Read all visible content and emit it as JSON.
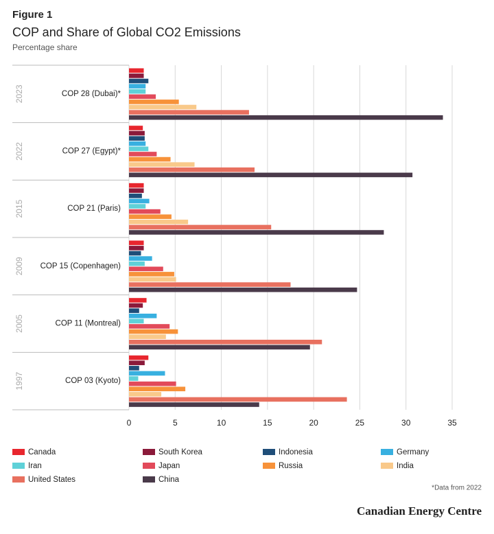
{
  "chart_data": {
    "type": "bar",
    "orientation": "horizontal",
    "figure_label": "Figure 1",
    "title": "COP and Share of Global CO2 Emissions",
    "subtitle": "Percentage share",
    "categories": [
      "COP 28 (Dubai)*",
      "COP 27 (Egypt)*",
      "COP 21 (Paris)",
      "COP 15 (Copenhagen)",
      "COP 11 (Montreal)",
      "COP 03 (Kyoto)"
    ],
    "years": [
      "2023",
      "2022",
      "2015",
      "2009",
      "2005",
      "1997"
    ],
    "series": [
      {
        "name": "Canada",
        "color": "#e8262e",
        "values": [
          1.6,
          1.5,
          1.6,
          1.6,
          1.9,
          2.1
        ]
      },
      {
        "name": "South Korea",
        "color": "#8b1a3a",
        "values": [
          1.6,
          1.7,
          1.6,
          1.6,
          1.5,
          1.7
        ]
      },
      {
        "name": "Indonesia",
        "color": "#1f4e79",
        "values": [
          2.1,
          1.7,
          1.4,
          1.3,
          1.1,
          1.1
        ]
      },
      {
        "name": "Germany",
        "color": "#38b0e0",
        "values": [
          1.8,
          1.8,
          2.2,
          2.5,
          3.0,
          3.9
        ]
      },
      {
        "name": "Iran",
        "color": "#5fd1d8",
        "values": [
          1.8,
          2.1,
          1.8,
          1.7,
          1.6,
          1.0
        ]
      },
      {
        "name": "Japan",
        "color": "#e24a5a",
        "values": [
          2.9,
          3.0,
          3.4,
          3.7,
          4.4,
          5.1
        ]
      },
      {
        "name": "Russia",
        "color": "#f7923a",
        "values": [
          5.4,
          4.5,
          4.6,
          4.9,
          5.3,
          6.1
        ]
      },
      {
        "name": "India",
        "color": "#f9c98a",
        "values": [
          7.3,
          7.1,
          6.4,
          5.1,
          4.0,
          3.5
        ]
      },
      {
        "name": "United States",
        "color": "#e8705f",
        "values": [
          13.0,
          13.6,
          15.4,
          17.5,
          20.9,
          23.6
        ]
      },
      {
        "name": "China",
        "color": "#4a3a4a",
        "values": [
          34.0,
          30.7,
          27.6,
          24.7,
          19.6,
          14.1
        ]
      }
    ],
    "xlim": [
      0,
      35
    ],
    "xticks": [
      0,
      5,
      10,
      15,
      20,
      25,
      30,
      35
    ],
    "grid": true,
    "footnote": "*Data from 2022",
    "source": "Canadian Energy Centre"
  }
}
